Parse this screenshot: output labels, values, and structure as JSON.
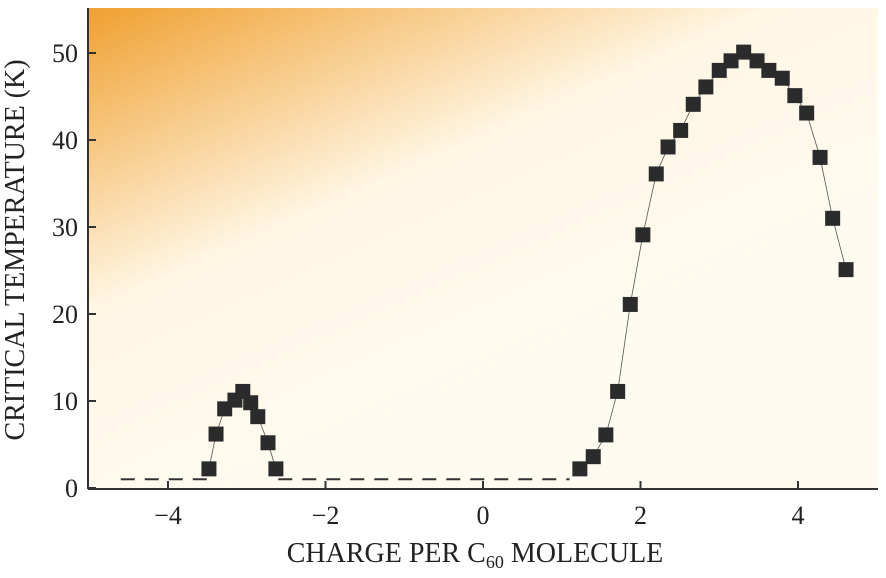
{
  "chart_data": {
    "type": "scatter",
    "title": "",
    "xlabel": "CHARGE PER C",
    "xlabel_subscript": "60",
    "xlabel_suffix": " MOLECULE",
    "ylabel": "CRITICAL TEMPERATURE (K)",
    "xlim": [
      -5.1,
      4.9
    ],
    "ylim": [
      0,
      55
    ],
    "xticks": [
      -4,
      -2,
      0,
      2,
      4
    ],
    "xtick_labels": [
      "−4",
      "−2",
      "0",
      "2",
      "4"
    ],
    "yticks": [
      0,
      10,
      20,
      30,
      40,
      50
    ],
    "ytick_labels": [
      "0",
      "10",
      "20",
      "30",
      "40",
      "50"
    ],
    "grid": false,
    "colors": {
      "marker": "#2b2b2b",
      "background": "#fffbf0",
      "gradient": "#f0a030"
    },
    "series": [
      {
        "marker": "square",
        "x": [
          -3.48,
          -3.39,
          -3.28,
          -3.15,
          -3.05,
          -2.95,
          -2.86,
          -2.73,
          -2.63
        ],
        "y": [
          2.2,
          6.2,
          9.1,
          10.1,
          11.1,
          9.8,
          8.2,
          5.2,
          2.2
        ]
      },
      {
        "marker": "square",
        "x": [
          1.23,
          1.4,
          1.56,
          1.71,
          1.87,
          2.03,
          2.2,
          2.35,
          2.51,
          2.67,
          2.83,
          3.0,
          3.15,
          3.31,
          3.48,
          3.63,
          3.8,
          3.96,
          4.11,
          4.28,
          4.44,
          4.61
        ],
        "y": [
          2.2,
          3.6,
          6.1,
          11.1,
          21.1,
          29.1,
          36.1,
          39.2,
          41.1,
          44.1,
          46.1,
          48.0,
          49.1,
          50.1,
          49.1,
          48.0,
          47.1,
          45.1,
          43.1,
          38.0,
          31.0,
          25.1
        ]
      }
    ],
    "dashed_baseline": [
      {
        "x": [
          -4.6,
          -3.5
        ],
        "y": 1
      },
      {
        "x": [
          -2.6,
          1.1
        ],
        "y": 1
      }
    ]
  }
}
